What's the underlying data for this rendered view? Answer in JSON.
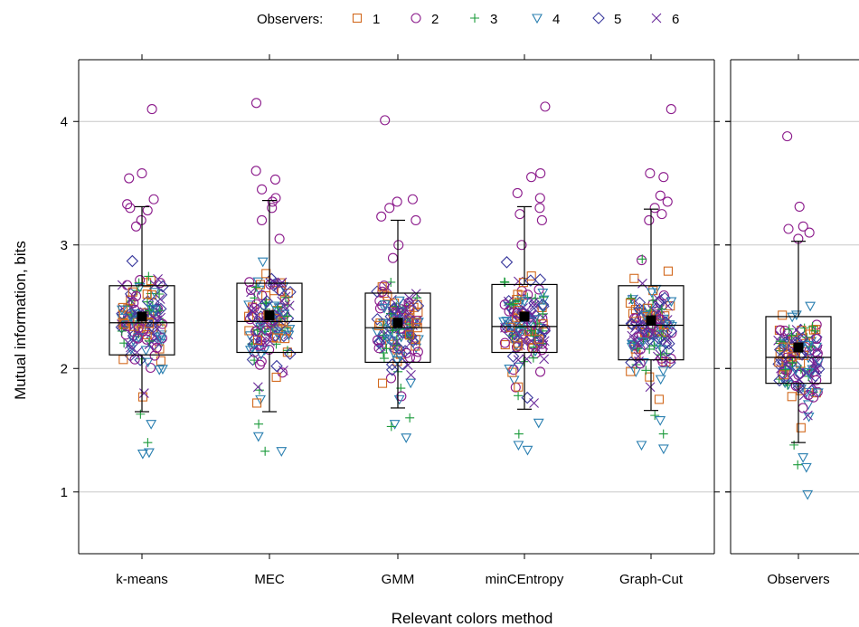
{
  "chart_data": {
    "type": "box-scatter",
    "xlabel": "Relevant colors method",
    "ylabel": "Mutual information, bits",
    "ylim": [
      0.5,
      4.5
    ],
    "yticks": [
      1,
      2,
      3,
      4
    ],
    "grid": true,
    "legend": {
      "title": "Observers:",
      "placement": "top",
      "entries": [
        {
          "label": "1",
          "marker": "square",
          "color": "#d2691e"
        },
        {
          "label": "2",
          "marker": "circle",
          "color": "#8b1a8b"
        },
        {
          "label": "3",
          "marker": "plus",
          "color": "#1a9a3a"
        },
        {
          "label": "4",
          "marker": "triangle-down",
          "color": "#2a7fb0"
        },
        {
          "label": "5",
          "marker": "diamond",
          "color": "#3b3b9e"
        },
        {
          "label": "6",
          "marker": "x",
          "color": "#6a2a9a"
        }
      ]
    },
    "panels": [
      {
        "categories": [
          {
            "label": "k-means",
            "q1": 2.11,
            "median": 2.37,
            "q3": 2.67,
            "whisker_low": 1.65,
            "whisker_high": 3.31,
            "mean": 2.42,
            "outliers": [
              4.1,
              3.58,
              3.54,
              3.37,
              3.33,
              3.3,
              3.28,
              3.2,
              3.15
            ],
            "low_points": [
              1.63,
              1.55,
              1.4,
              1.32,
              1.31,
              1.77,
              1.8
            ]
          },
          {
            "label": "MEC",
            "q1": 2.13,
            "median": 2.38,
            "q3": 2.69,
            "whisker_low": 1.65,
            "whisker_high": 3.36,
            "mean": 2.43,
            "outliers": [
              4.15,
              3.6,
              3.53,
              3.45,
              3.38,
              3.35,
              3.3,
              3.2,
              3.05
            ],
            "low_points": [
              1.55,
              1.45,
              1.33,
              1.33,
              1.75,
              1.72,
              1.85
            ]
          },
          {
            "label": "GMM",
            "q1": 2.05,
            "median": 2.33,
            "q3": 2.61,
            "whisker_low": 1.68,
            "whisker_high": 3.2,
            "mean": 2.37,
            "outliers": [
              4.01,
              3.37,
              3.35,
              3.3,
              3.23,
              3.2,
              3.0
            ],
            "low_points": [
              1.6,
              1.55,
              1.53,
              1.44,
              1.75,
              1.88
            ]
          },
          {
            "label": "minCEntropy",
            "q1": 2.13,
            "median": 2.34,
            "q3": 2.68,
            "whisker_low": 1.67,
            "whisker_high": 3.31,
            "mean": 2.42,
            "outliers": [
              4.12,
              3.58,
              3.55,
              3.42,
              3.38,
              3.3,
              3.25,
              3.2,
              3.0
            ],
            "low_points": [
              1.78,
              1.56,
              1.47,
              1.38,
              1.34,
              1.85,
              1.72
            ]
          },
          {
            "label": "Graph-Cut",
            "q1": 2.07,
            "median": 2.35,
            "q3": 2.67,
            "whisker_low": 1.66,
            "whisker_high": 3.29,
            "mean": 2.39,
            "outliers": [
              4.1,
              3.58,
              3.55,
              3.4,
              3.35,
              3.3,
              3.25,
              3.2
            ],
            "low_points": [
              1.62,
              1.58,
              1.47,
              1.38,
              1.35,
              1.75,
              1.85
            ]
          }
        ]
      },
      {
        "categories": [
          {
            "label": "Observers",
            "q1": 1.88,
            "median": 2.09,
            "q3": 2.42,
            "whisker_low": 1.4,
            "whisker_high": 3.03,
            "mean": 2.17,
            "outliers": [
              3.88,
              3.31,
              3.15,
              3.13,
              3.1,
              3.05
            ],
            "low_points": [
              1.38,
              1.28,
              1.22,
              1.2,
              0.98,
              1.52,
              1.62
            ]
          }
        ]
      }
    ]
  }
}
